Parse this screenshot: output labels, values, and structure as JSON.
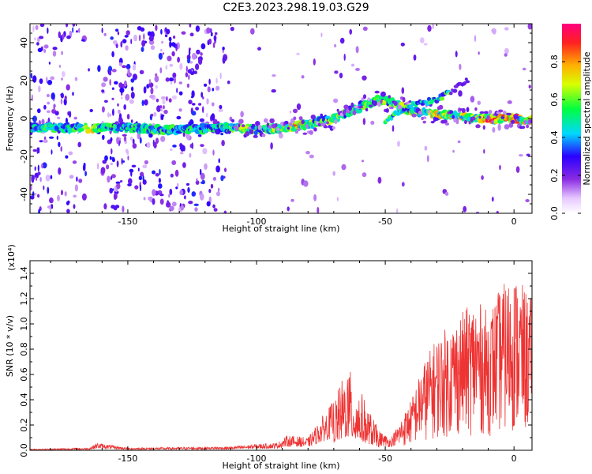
{
  "title": "C2E3.2023.298.19.03.G29",
  "chart_data": [
    {
      "type": "heatmap",
      "xlabel": "Height of straight line (km)",
      "ylabel": "Frequency (Hz)",
      "xlim": [
        -188,
        7
      ],
      "ylim": [
        -50,
        50
      ],
      "x_ticks": [
        -150,
        -100,
        -50,
        0
      ],
      "y_ticks": [
        -40,
        -20,
        0,
        20,
        40
      ],
      "colorbar": {
        "label": "Normalized spectral amplitude",
        "range": [
          0.0,
          1.0
        ],
        "ticks": [
          0.0,
          0.2,
          0.4,
          0.6,
          0.8
        ],
        "tick_labels": [
          "0.0",
          "0.2",
          "0.4",
          "0.6",
          "0.8"
        ]
      },
      "main_trace": {
        "x": [
          -188,
          -170,
          -150,
          -130,
          -110,
          -100,
          -90,
          -80,
          -70,
          -60,
          -52,
          -47,
          -40,
          -30,
          -20,
          -10,
          0,
          7
        ],
        "y": [
          -5,
          -5,
          -5,
          -6,
          -5,
          -6,
          -5,
          -3,
          0,
          6,
          10,
          8,
          4,
          2,
          1,
          0,
          0,
          -1
        ]
      },
      "branch_trace": {
        "x": [
          -50,
          -45,
          -40,
          -30,
          -25,
          -18
        ],
        "y": [
          -1,
          3,
          7,
          10,
          14,
          20
        ]
      }
    },
    {
      "type": "line",
      "xlabel": "Height of straight line (km)",
      "ylabel": "SNR (10 * v/v)",
      "multiplier": "(x10⁴)",
      "xlim": [
        -188,
        7
      ],
      "ylim": [
        0,
        1.5
      ],
      "x_ticks": [
        -150,
        -100,
        -50,
        0
      ],
      "y_ticks": [
        0.0,
        0.2,
        0.4,
        0.6,
        0.8,
        1.0,
        1.2,
        1.4
      ],
      "y_tick_labels": [
        "0.0",
        "0.2",
        "0.4",
        "0.6",
        "0.8",
        "1.0",
        "1.2",
        "1.4"
      ],
      "color": "#ee3333",
      "envelope": {
        "x": [
          -188,
          -165,
          -162,
          -150,
          -110,
          -100,
          -92,
          -88,
          -80,
          -75,
          -70,
          -67,
          -65,
          -62,
          -60,
          -57,
          -52,
          -48,
          -45,
          -40,
          -35,
          -30,
          -25,
          -20,
          -15,
          -10,
          -5,
          0,
          7
        ],
        "y": [
          0.01,
          0.02,
          0.06,
          0.02,
          0.03,
          0.05,
          0.06,
          0.12,
          0.1,
          0.25,
          0.4,
          0.55,
          0.7,
          0.55,
          0.5,
          0.35,
          0.15,
          0.1,
          0.2,
          0.4,
          0.7,
          0.9,
          1.0,
          1.1,
          1.2,
          1.1,
          1.3,
          1.4,
          1.2
        ]
      }
    }
  ]
}
